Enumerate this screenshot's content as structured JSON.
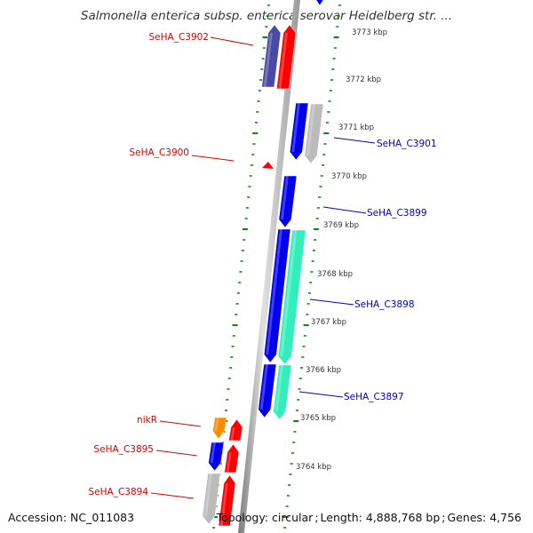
{
  "title": "Salmonella enterica subsp. enterica serovar Heidelberg str. ...",
  "accession": "Accession: NC_011083",
  "topology": "Topology: circular",
  "length": "Length: 4,888,768 bp",
  "genes": "Genes: 4,756",
  "ruler": [
    "3773 kbp",
    "3772 kbp",
    "3771 kbp",
    "3770 kbp",
    "3769 kbp",
    "3768 kbp",
    "3767 kbp",
    "3766 kbp",
    "3765 kbp",
    "3764 kbp"
  ],
  "labels": {
    "SeHA_C3902": "SeHA_C3902",
    "SeHA_C3900": "SeHA_C3900",
    "nikR": "nikR",
    "SeHA_C3895": "SeHA_C3895",
    "SeHA_C3894": "SeHA_C3894",
    "SeHA_C3901": "SeHA_C3901",
    "SeHA_C3899": "SeHA_C3899",
    "SeHA_C3898": "SeHA_C3898",
    "SeHA_C3897": "SeHA_C3897"
  },
  "colors": {
    "red": "#ff0000",
    "blue": "#0000ee",
    "navy": "#4a4aa6",
    "gray": "#bbbbbb",
    "green": "#33eebb",
    "orange": "#ff8c00",
    "dash": "#0a8a0a",
    "label_red": "#dd0000",
    "label_blue": "#0000cc",
    "backbone": "#999999"
  }
}
